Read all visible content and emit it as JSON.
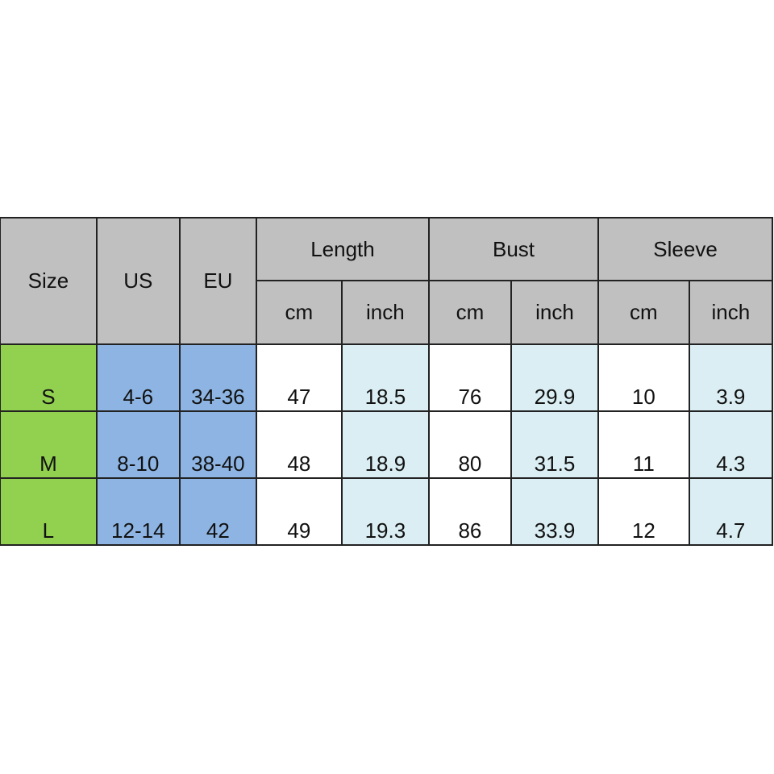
{
  "headers": {
    "size": "Size",
    "us": "US",
    "eu": "EU",
    "groups": [
      "Length",
      "Bust",
      "Sleeve"
    ],
    "units": [
      "cm",
      "inch",
      "cm",
      "inch",
      "cm",
      "inch"
    ]
  },
  "rows": [
    {
      "size": "S",
      "us": "4-6",
      "eu": "34-36",
      "values": [
        "47",
        "18.5",
        "76",
        "29.9",
        "10",
        "3.9"
      ]
    },
    {
      "size": "M",
      "us": "8-10",
      "eu": "38-40",
      "values": [
        "48",
        "18.9",
        "80",
        "31.5",
        "11",
        "4.3"
      ]
    },
    {
      "size": "L",
      "us": "12-14",
      "eu": "42",
      "values": [
        "49",
        "19.3",
        "86",
        "33.9",
        "12",
        "4.7"
      ]
    }
  ],
  "colors": {
    "header": "#c0c0c0",
    "size": "#92d050",
    "conversion": "#8db4e2",
    "inch": "#daeef3"
  }
}
